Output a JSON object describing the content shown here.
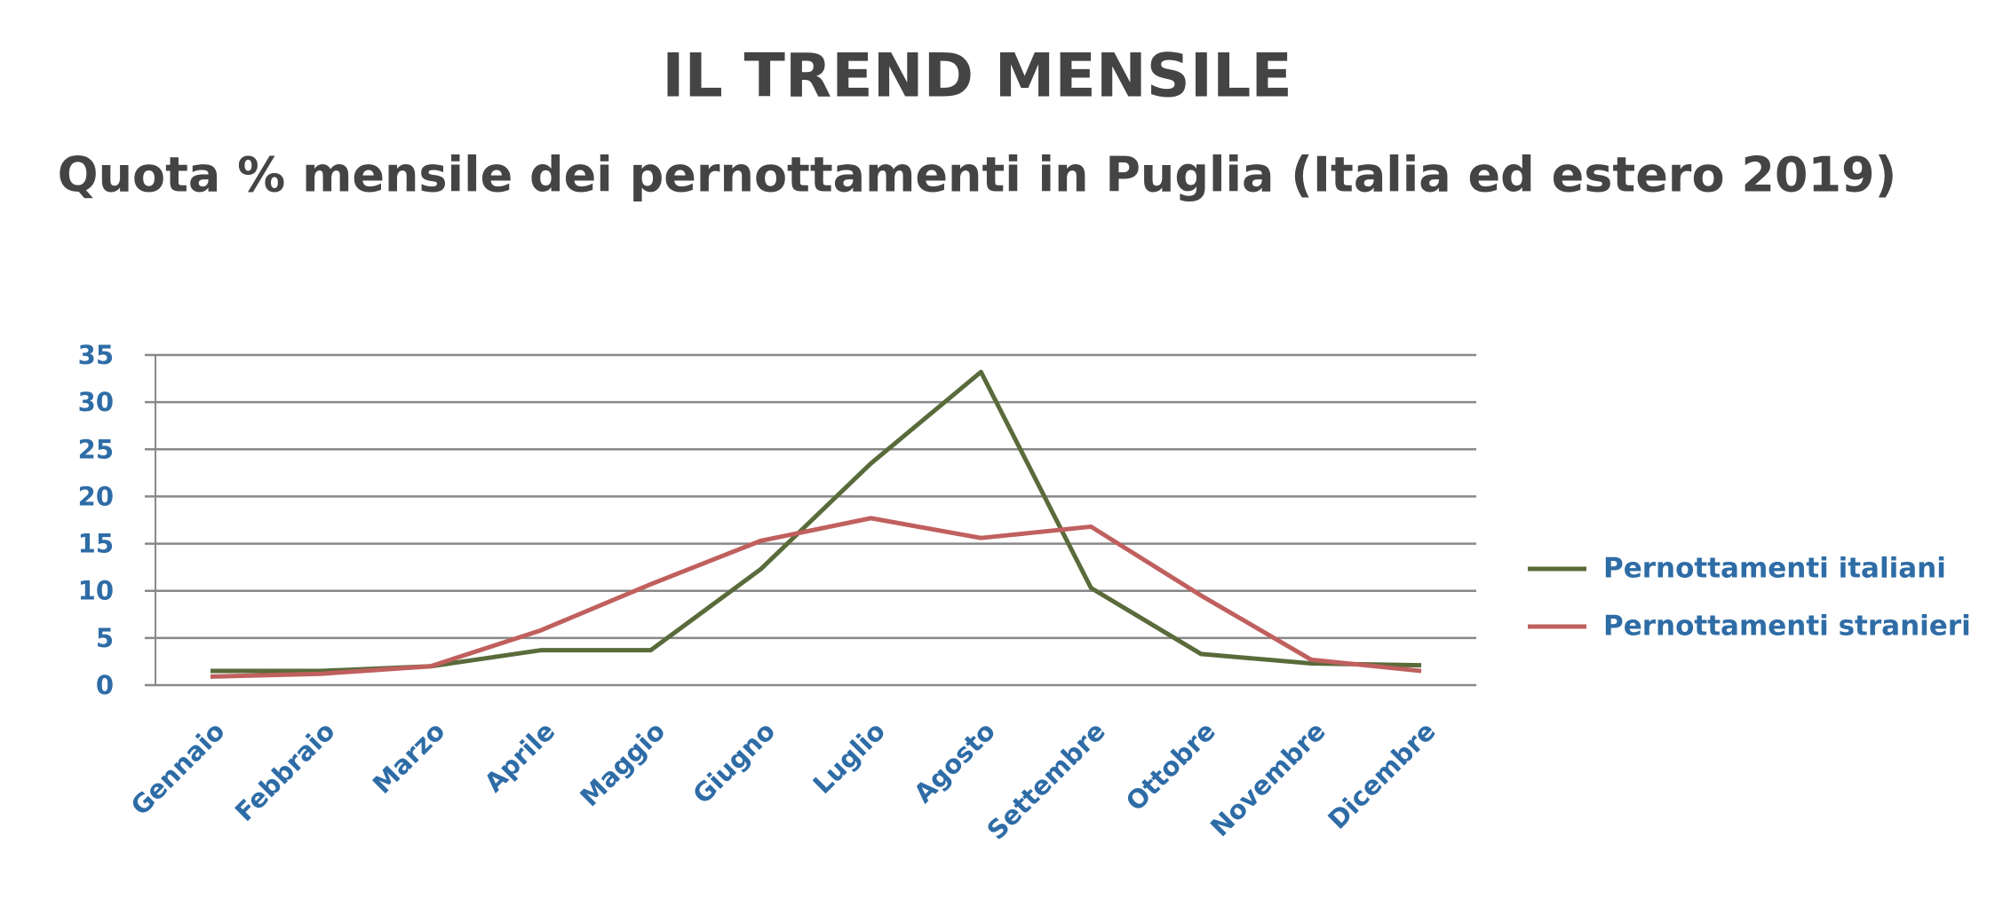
{
  "chart_data": {
    "type": "line",
    "title": "IL TREND MENSILE",
    "subtitle": "Quota % mensile dei pernottamenti in Puglia (Italia ed estero 2019)",
    "categories": [
      "Gennaio",
      "Febbraio",
      "Marzo",
      "Aprile",
      "Maggio",
      "Giugno",
      "Luglio",
      "Agosto",
      "Settembre",
      "Ottobre",
      "Novembre",
      "Dicembre"
    ],
    "series": [
      {
        "name": "Pernottamenti italiani",
        "color": "#5a6b3b",
        "values": [
          1.5,
          1.5,
          2,
          3.7,
          3.7,
          12.3,
          23.5,
          33.2,
          10.3,
          3.3,
          2.3,
          2.1
        ]
      },
      {
        "name": "Pernottamenti stranieri",
        "color": "#c0605e",
        "values": [
          0.9,
          1.2,
          2,
          5.8,
          10.7,
          15.3,
          17.7,
          15.6,
          16.8,
          9.5,
          2.7,
          1.5
        ]
      }
    ],
    "ylim": [
      0,
      35
    ],
    "yticks": [
      0,
      5,
      10,
      15,
      20,
      25,
      30,
      35
    ],
    "grid": true,
    "legend": "right"
  }
}
